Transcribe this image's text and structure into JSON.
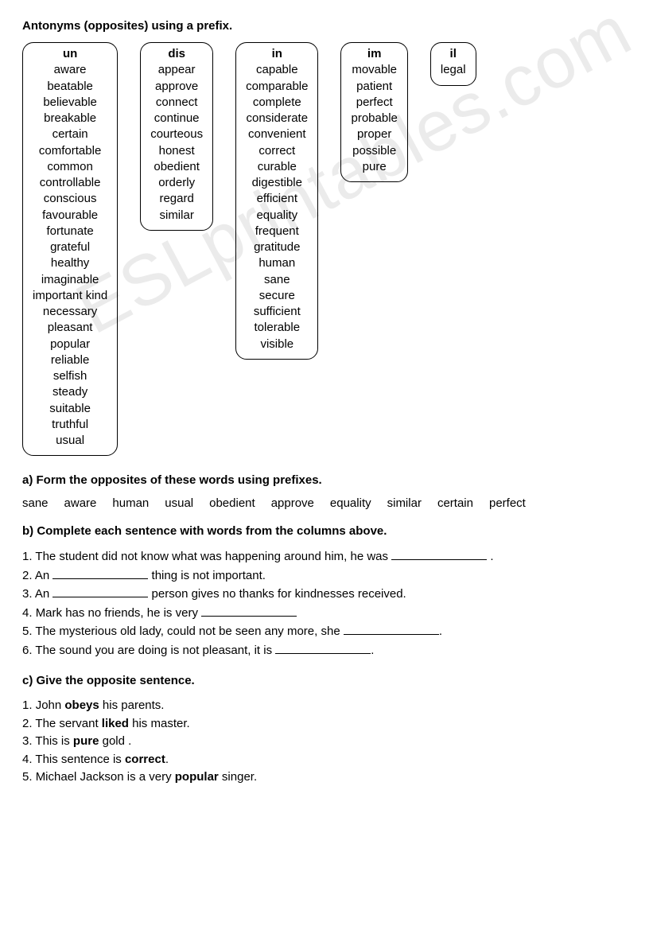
{
  "title": "Antonyms (opposites)  using a prefix.",
  "watermark": "ESLprintables.com",
  "boxes": [
    {
      "head": "un",
      "words": [
        "aware",
        "beatable",
        "believable",
        "breakable",
        "certain",
        "comfortable",
        "common",
        "controllable",
        "conscious",
        "favourable",
        "fortunate",
        "grateful",
        "healthy",
        "imaginable",
        "important kind",
        "necessary",
        "pleasant",
        "popular",
        "reliable",
        "selfish",
        "steady",
        "suitable",
        "truthful",
        "usual"
      ]
    },
    {
      "head": "dis",
      "words": [
        "appear",
        "approve",
        "connect",
        "continue",
        "courteous",
        "honest",
        "obedient",
        "orderly",
        "regard",
        "similar"
      ]
    },
    {
      "head": "in",
      "words": [
        "capable",
        "comparable",
        "complete",
        "considerate",
        "convenient",
        "correct",
        "curable",
        "digestible",
        "efficient",
        "equality",
        "frequent",
        "gratitude",
        "human",
        "sane",
        "secure",
        "sufficient",
        "tolerable",
        "visible"
      ]
    },
    {
      "head": "im",
      "words": [
        "movable",
        "patient",
        "perfect",
        "probable",
        "proper",
        "possible",
        "pure"
      ]
    },
    {
      "head": "il",
      "words": [
        "legal"
      ]
    }
  ],
  "sectionA": {
    "head": "a) Form the opposites of these words using prefixes.",
    "words": [
      "sane",
      "aware",
      "human",
      "usual",
      "obedient",
      "approve",
      "equality",
      "similar",
      "certain",
      "perfect"
    ]
  },
  "sectionB": {
    "head": "b) Complete each sentence with words from the columns above.",
    "lines": [
      {
        "n": "1.",
        "pre": "The student did not know what was happening around him, he was ",
        "post": " ."
      },
      {
        "n": "2.",
        "pre": "An ",
        "post": " thing is not important."
      },
      {
        "n": "3.",
        "pre": "An ",
        "post": " person gives no thanks for kindnesses received."
      },
      {
        "n": "4.",
        "pre": "Mark has no friends, he is very ",
        "post": ""
      },
      {
        "n": "5.",
        "pre": "The mysterious old lady, could not be seen any more, she ",
        "post": "."
      },
      {
        "n": "6.",
        "pre": "The sound you are doing is not pleasant, it is ",
        "post": "."
      }
    ]
  },
  "sectionC": {
    "head": "c) Give the opposite sentence.",
    "lines": [
      {
        "n": "1.",
        "a": "John ",
        "b": "obeys",
        "c": " his parents."
      },
      {
        "n": "2.",
        "a": "The servant ",
        "b": "liked",
        "c": " his master."
      },
      {
        "n": "3.",
        "a": "This is ",
        "b": "pure",
        "c": " gold ."
      },
      {
        "n": "4.",
        "a": "This sentence is ",
        "b": "correct",
        "c": "."
      },
      {
        "n": "5.",
        "a": "Michael Jackson is a very ",
        "b": "popular",
        "c": " singer."
      }
    ]
  }
}
